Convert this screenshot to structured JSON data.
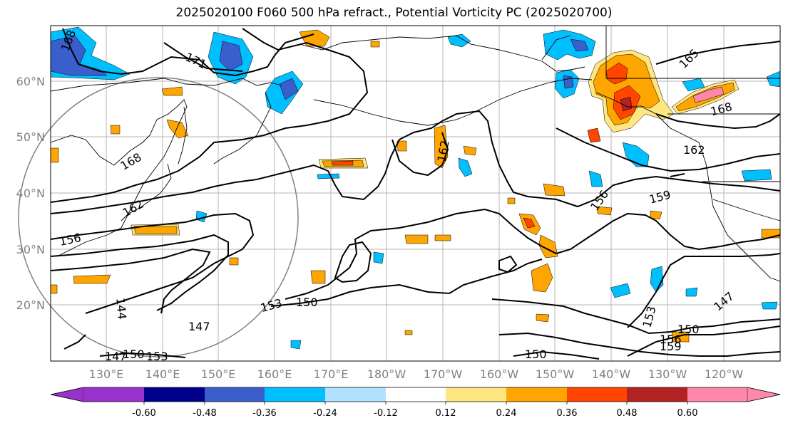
{
  "title": "2025020100 F060 500 hPa refract., Potential Vorticity PC (2025020700)",
  "lat_labels": [
    "60°N",
    "50°N",
    "40°N",
    "30°N",
    "20°N"
  ],
  "lon_labels": [
    "130°E",
    "140°E",
    "150°E",
    "160°E",
    "170°E",
    "180°W",
    "170°W",
    "160°W",
    "150°W",
    "140°W",
    "130°W",
    "120°W"
  ],
  "contour_labels": [
    "168",
    "171",
    "165",
    "168",
    "162",
    "162",
    "168",
    "162",
    "156",
    "159",
    "156",
    "153",
    "150",
    "144",
    "147",
    "147",
    "150",
    "153",
    "153",
    "156",
    "150",
    "159",
    "150",
    "147"
  ],
  "colorbar": {
    "ticks": [
      "-0.60",
      "-0.48",
      "-0.36",
      "-0.24",
      "-0.12",
      "0.12",
      "0.24",
      "0.36",
      "0.48",
      "0.60"
    ],
    "colors": [
      "#9932cc",
      "#00008b",
      "#3a5fcd",
      "#00bfff",
      "#b0e2ff",
      "#ffffff",
      "#ffe680",
      "#ffa500",
      "#ff4500",
      "#b22222",
      "#ff88aa"
    ]
  }
}
